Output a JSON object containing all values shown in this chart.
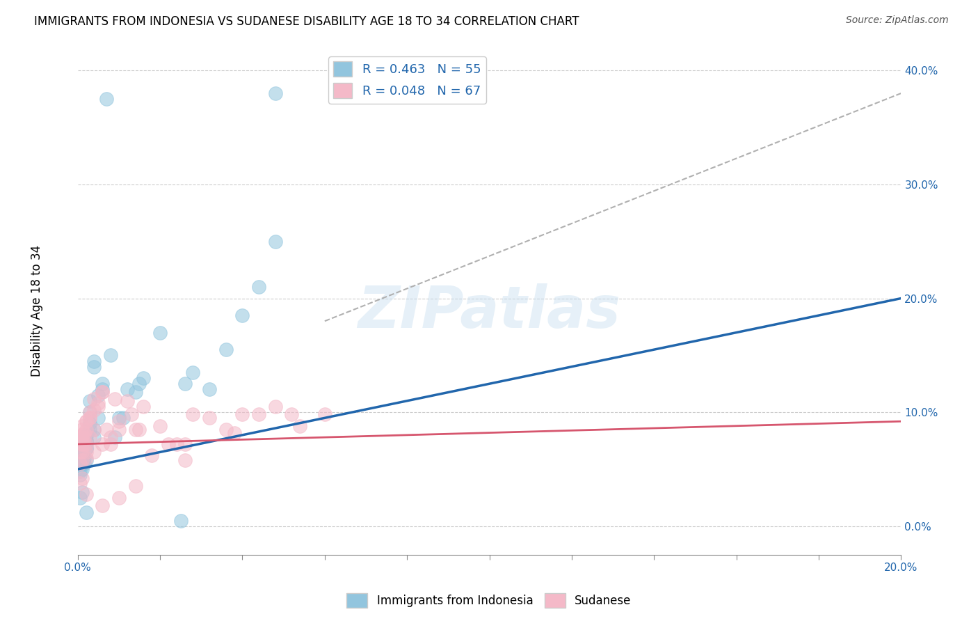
{
  "title": "IMMIGRANTS FROM INDONESIA VS SUDANESE DISABILITY AGE 18 TO 34 CORRELATION CHART",
  "source": "Source: ZipAtlas.com",
  "ylabel": "Disability Age 18 to 34",
  "xlim": [
    0.0,
    0.2
  ],
  "ylim": [
    -0.025,
    0.42
  ],
  "xticks": [
    0.0,
    0.02,
    0.04,
    0.06,
    0.08,
    0.1,
    0.12,
    0.14,
    0.16,
    0.18,
    0.2
  ],
  "xtick_labels": [
    "0.0%",
    "",
    "",
    "",
    "",
    "",
    "",
    "",
    "",
    "",
    "20.0%"
  ],
  "yticks": [
    0.0,
    0.1,
    0.2,
    0.3,
    0.4
  ],
  "ytick_labels": [
    "0.0%",
    "10.0%",
    "20.0%",
    "30.0%",
    "40.0%"
  ],
  "legend_R1": "R = 0.463",
  "legend_N1": "N = 55",
  "legend_R2": "R = 0.048",
  "legend_N2": "N = 67",
  "color_blue": "#92c5de",
  "color_pink": "#f4b9c8",
  "color_blue_line": "#2166ac",
  "color_pink_line": "#d6566e",
  "color_dashed": "#b0b0b0",
  "watermark": "ZIPatlas",
  "indonesia_x": [
    0.0005,
    0.001,
    0.0015,
    0.0005,
    0.002,
    0.001,
    0.0015,
    0.001,
    0.0005,
    0.002,
    0.003,
    0.002,
    0.003,
    0.001,
    0.004,
    0.002,
    0.002,
    0.001,
    0.0005,
    0.004,
    0.005,
    0.003,
    0.006,
    0.002,
    0.001,
    0.003,
    0.001,
    0.004,
    0.002,
    0.002,
    0.005,
    0.004,
    0.006,
    0.008,
    0.01,
    0.012,
    0.014,
    0.016,
    0.02,
    0.025,
    0.028,
    0.032,
    0.036,
    0.04,
    0.044,
    0.048,
    0.0005,
    0.001,
    0.002,
    0.007,
    0.009,
    0.011,
    0.015,
    0.026,
    0.048
  ],
  "indonesia_y": [
    0.06,
    0.065,
    0.055,
    0.07,
    0.075,
    0.05,
    0.06,
    0.068,
    0.045,
    0.058,
    0.085,
    0.072,
    0.09,
    0.062,
    0.078,
    0.08,
    0.068,
    0.055,
    0.048,
    0.085,
    0.095,
    0.11,
    0.12,
    0.075,
    0.062,
    0.1,
    0.055,
    0.14,
    0.068,
    0.08,
    0.115,
    0.145,
    0.125,
    0.15,
    0.095,
    0.12,
    0.118,
    0.13,
    0.17,
    0.005,
    0.135,
    0.12,
    0.155,
    0.185,
    0.21,
    0.25,
    0.025,
    0.03,
    0.012,
    0.375,
    0.078,
    0.095,
    0.125,
    0.125,
    0.38
  ],
  "sudanese_x": [
    0.0005,
    0.001,
    0.0005,
    0.001,
    0.002,
    0.0015,
    0.001,
    0.002,
    0.001,
    0.0005,
    0.003,
    0.002,
    0.0015,
    0.003,
    0.001,
    0.004,
    0.002,
    0.001,
    0.004,
    0.0005,
    0.005,
    0.003,
    0.006,
    0.002,
    0.001,
    0.003,
    0.001,
    0.004,
    0.0015,
    0.002,
    0.005,
    0.004,
    0.006,
    0.008,
    0.01,
    0.012,
    0.014,
    0.016,
    0.02,
    0.024,
    0.028,
    0.006,
    0.007,
    0.009,
    0.01,
    0.013,
    0.015,
    0.018,
    0.022,
    0.026,
    0.032,
    0.036,
    0.04,
    0.044,
    0.052,
    0.0005,
    0.001,
    0.002,
    0.008,
    0.048,
    0.006,
    0.01,
    0.014,
    0.026,
    0.038,
    0.054,
    0.06
  ],
  "sudanese_y": [
    0.075,
    0.08,
    0.065,
    0.085,
    0.06,
    0.072,
    0.078,
    0.065,
    0.088,
    0.055,
    0.095,
    0.072,
    0.082,
    0.078,
    0.058,
    0.065,
    0.092,
    0.072,
    0.085,
    0.078,
    0.105,
    0.095,
    0.118,
    0.085,
    0.065,
    0.1,
    0.072,
    0.112,
    0.078,
    0.092,
    0.108,
    0.102,
    0.118,
    0.078,
    0.092,
    0.11,
    0.085,
    0.105,
    0.088,
    0.072,
    0.098,
    0.072,
    0.085,
    0.112,
    0.085,
    0.098,
    0.085,
    0.062,
    0.072,
    0.058,
    0.095,
    0.085,
    0.098,
    0.098,
    0.098,
    0.038,
    0.042,
    0.028,
    0.072,
    0.105,
    0.018,
    0.025,
    0.035,
    0.072,
    0.082,
    0.088,
    0.098
  ],
  "ind_line_x0": 0.0,
  "ind_line_y0": 0.05,
  "ind_line_x1": 0.2,
  "ind_line_y1": 0.2,
  "sud_line_x0": 0.0,
  "sud_line_y0": 0.072,
  "sud_line_x1": 0.2,
  "sud_line_y1": 0.092,
  "dash_line_x0": 0.06,
  "dash_line_y0": 0.18,
  "dash_line_x1": 0.2,
  "dash_line_y1": 0.38
}
